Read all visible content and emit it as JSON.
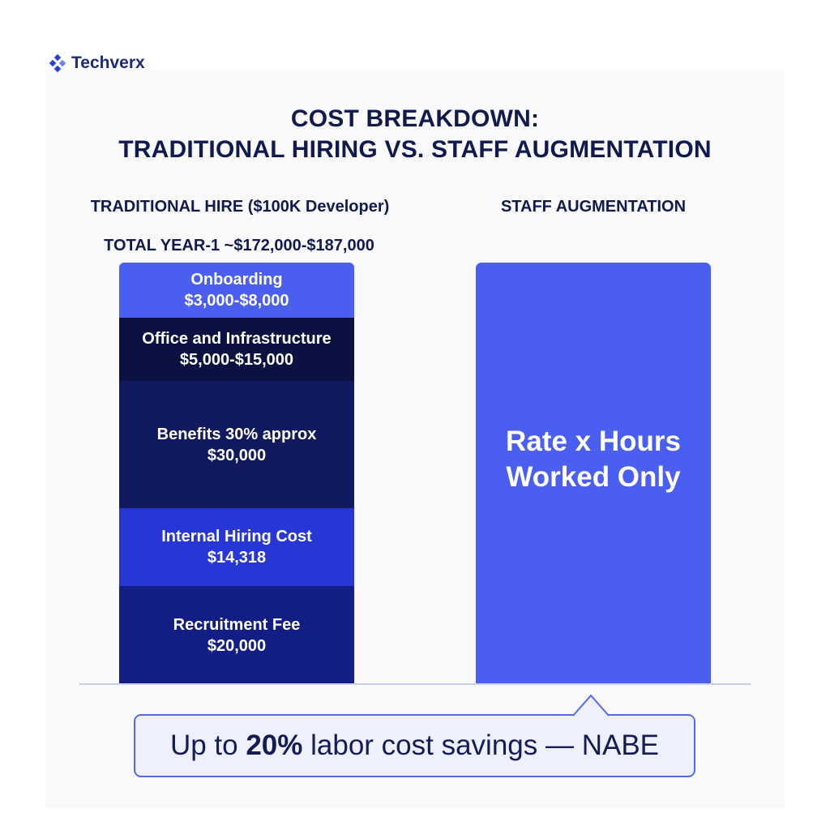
{
  "brand": {
    "name": "Techverx",
    "icon": "techverx-logo-icon"
  },
  "title": {
    "line1": "COST BREAKDOWN:",
    "line2": "TRADITIONAL HIRING VS. STAFF AUGMENTATION"
  },
  "traditional": {
    "heading": "TRADITIONAL HIRE ($100K Developer)",
    "total": "TOTAL YEAR-1 ~$172,000-$187,000",
    "segments": [
      {
        "label": "Onboarding",
        "value": "$3,000-$8,000",
        "color": "#4a5ef0"
      },
      {
        "label": "Office and Infrastructure",
        "value": "$5,000-$15,000",
        "color": "#0b1140"
      },
      {
        "label": "Benefits 30% approx",
        "value": "$30,000",
        "color": "#111a5e"
      },
      {
        "label": "Internal Hiring Cost",
        "value": "$14,318",
        "color": "#2637d6"
      },
      {
        "label": "Recruitment Fee",
        "value": "$20,000",
        "color": "#121e84"
      }
    ]
  },
  "augmentation": {
    "heading": "STAFF AUGMENTATION",
    "body_line1": "Rate x Hours",
    "body_line2": "Worked Only",
    "color": "#4a5ef0"
  },
  "callout": {
    "prefix": "Up to ",
    "highlight": "20%",
    "suffix": " labor cost savings — NABE"
  }
}
